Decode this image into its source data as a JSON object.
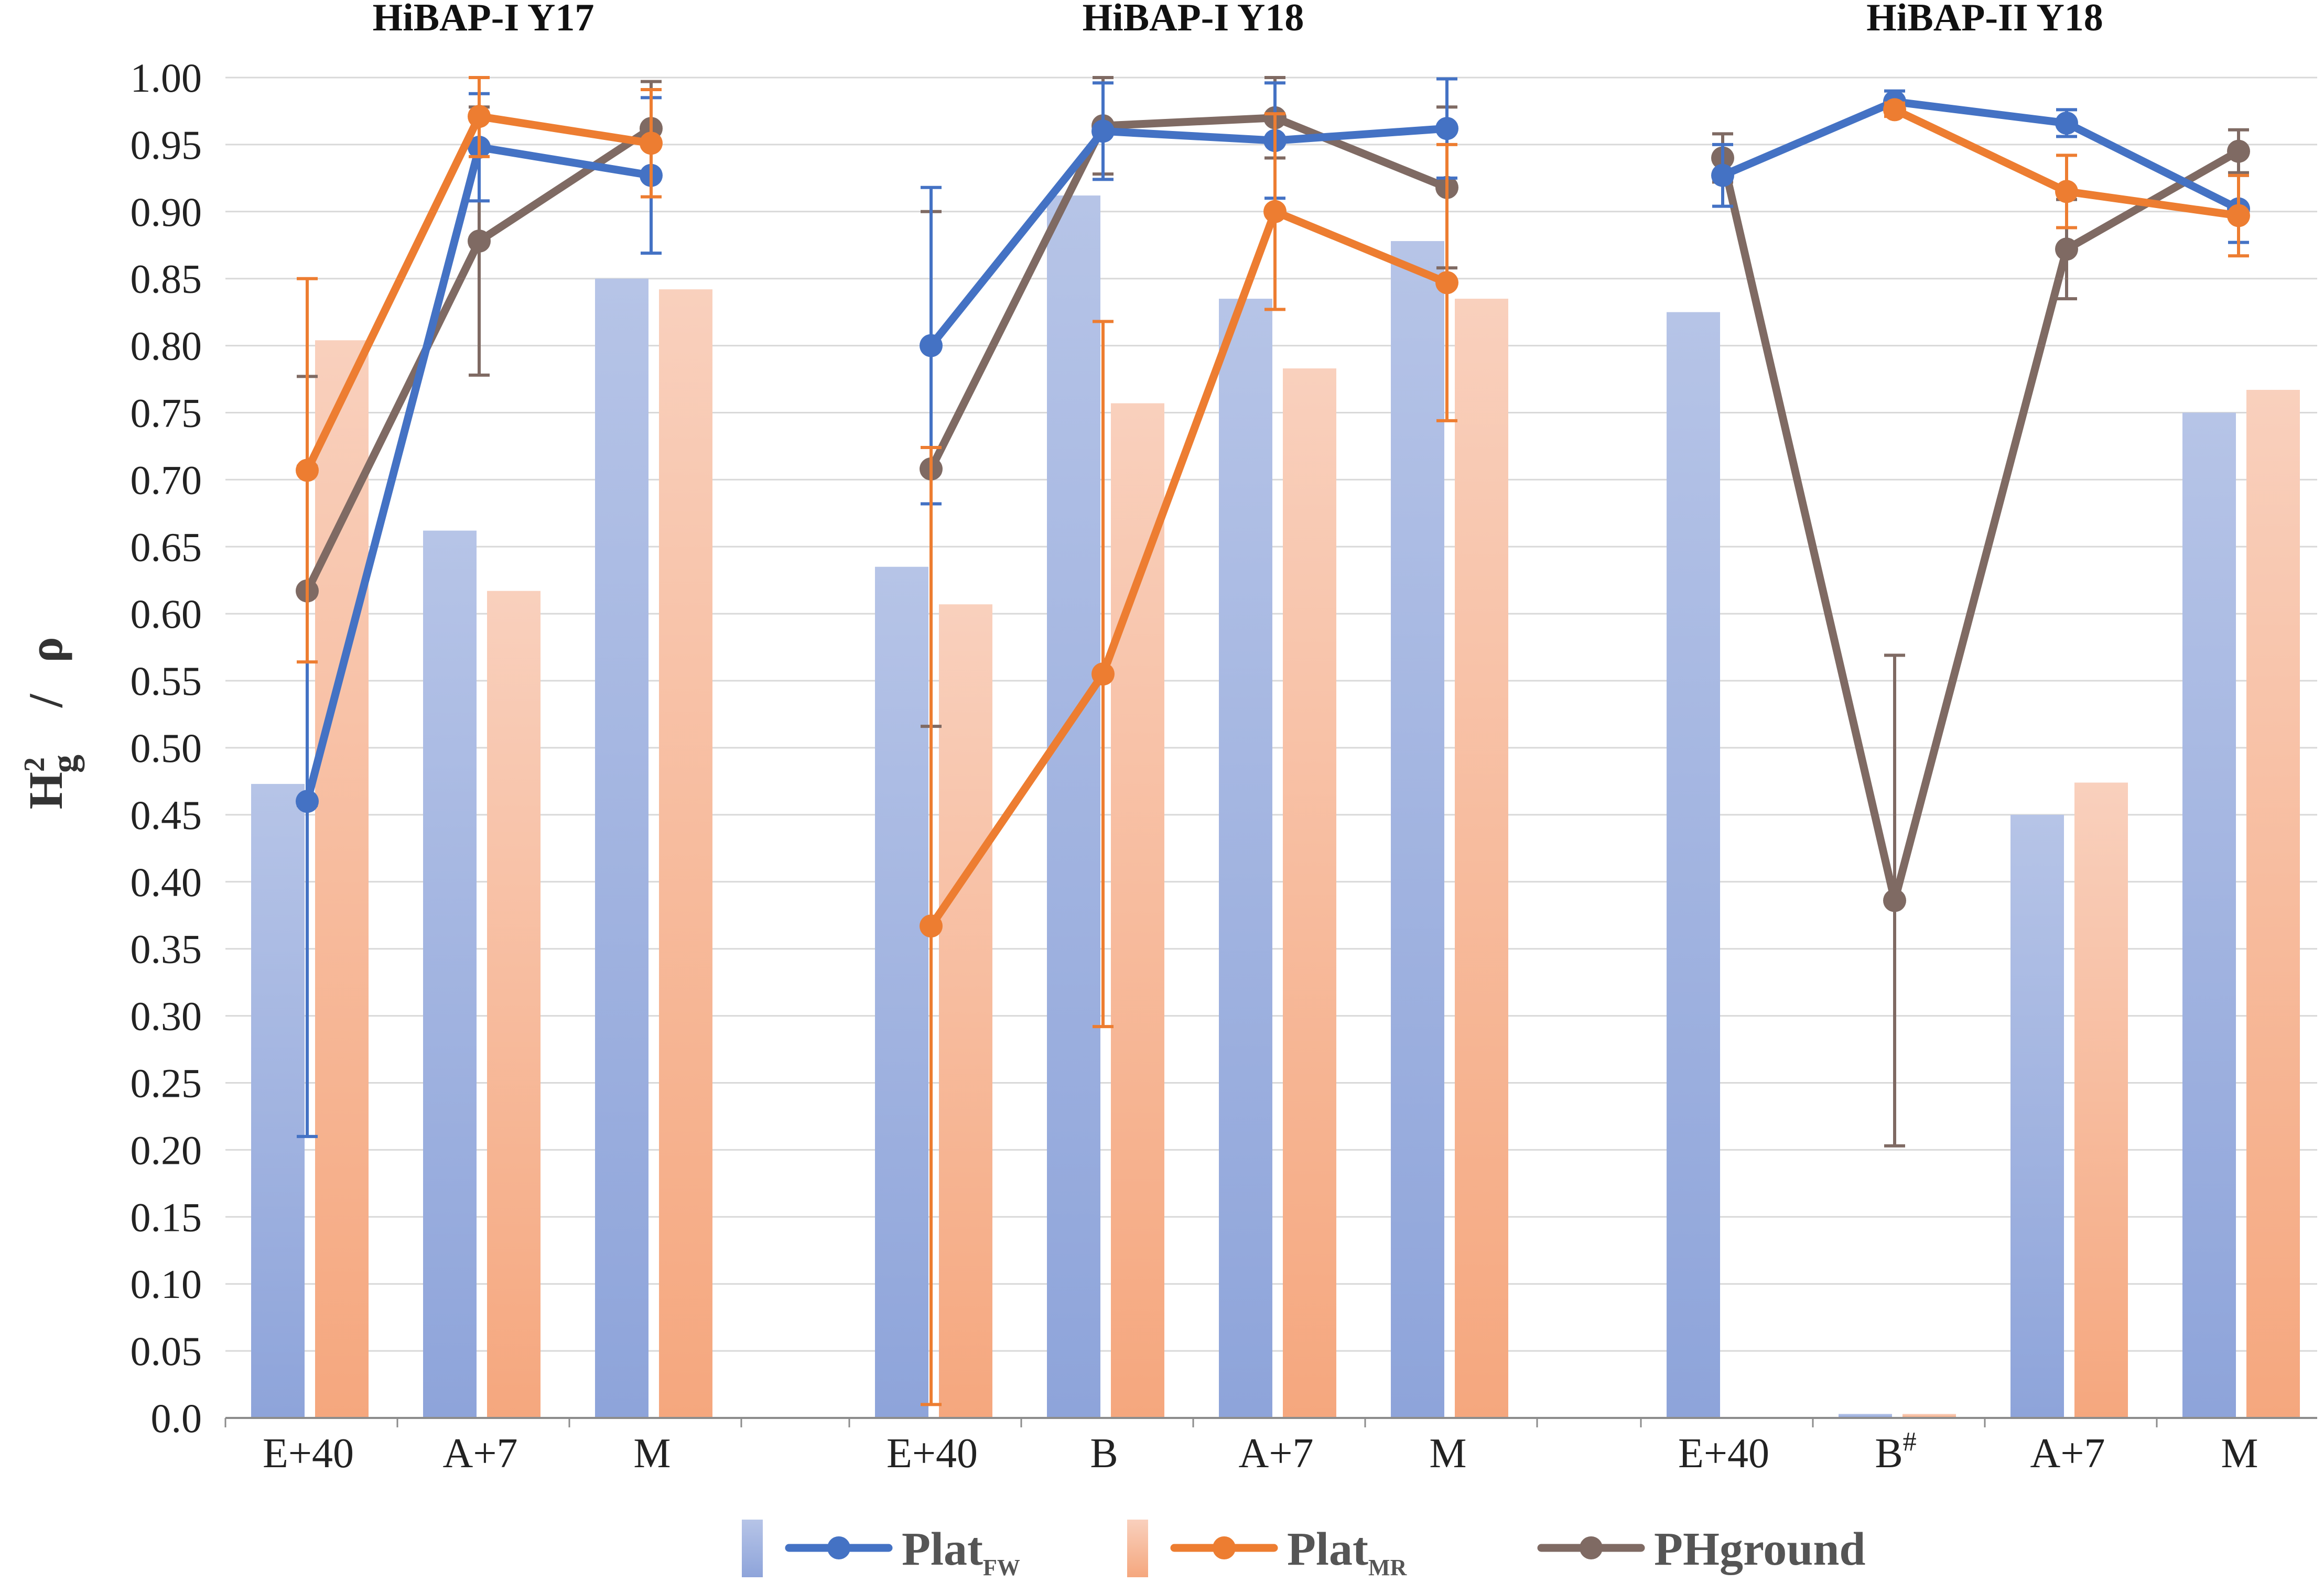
{
  "chart_data": {
    "type": "bar",
    "ylabel": {
      "main": "H",
      "sup": "2",
      "sub": "g",
      "sep": "/",
      "rho": "ρ"
    },
    "ylim": [
      0,
      1.0
    ],
    "yticks": [
      "0.0",
      "0.05",
      "0.10",
      "0.15",
      "0.20",
      "0.25",
      "0.30",
      "0.35",
      "0.40",
      "0.45",
      "0.50",
      "0.55",
      "0.60",
      "0.65",
      "0.70",
      "0.75",
      "0.80",
      "0.85",
      "0.90",
      "0.95",
      "1.00"
    ],
    "grid": true,
    "legend": {
      "position": "bottom",
      "items": [
        {
          "main": "Plat",
          "sub": "FW",
          "color": "#4472c4"
        },
        {
          "main": "Plat",
          "sub": "MR",
          "color": "#ed7d31"
        },
        {
          "main": "PHground",
          "sub": "",
          "color": "#7f6a63"
        }
      ]
    },
    "colors": {
      "bar_fw_top": "#b4c3e6",
      "bar_fw_bottom": "#8fa5da",
      "bar_mr_top": "#f8cdb8",
      "bar_mr_bottom": "#f5a880",
      "line_fw": "#4472c4",
      "line_mr": "#ed7d31",
      "line_ph": "#7f6a63",
      "grid": "#d9d9d9",
      "axis": "#8c8c8c"
    },
    "panels": [
      {
        "title": "HiBAP-I Y17",
        "categories": [
          {
            "label": "E+40",
            "sup": ""
          },
          {
            "label": "A+7",
            "sup": ""
          },
          {
            "label": "M",
            "sup": ""
          }
        ],
        "bars_fw": [
          0.473,
          0.662,
          0.85
        ],
        "bars_mr": [
          0.804,
          0.617,
          0.842
        ],
        "line_fw": {
          "values": [
            0.46,
            0.948,
            0.927
          ],
          "err": [
            0.25,
            0.04,
            0.058
          ]
        },
        "line_mr": {
          "values": [
            0.707,
            0.971,
            0.951
          ],
          "err": [
            0.143,
            0.03,
            0.04
          ]
        },
        "line_ph": {
          "values": [
            0.617,
            0.878,
            0.962
          ],
          "err": [
            0.16,
            0.1,
            0.035
          ]
        }
      },
      {
        "title": "HiBAP-I Y18",
        "categories": [
          {
            "label": "E+40",
            "sup": ""
          },
          {
            "label": "B",
            "sup": ""
          },
          {
            "label": "A+7",
            "sup": ""
          },
          {
            "label": "M",
            "sup": ""
          }
        ],
        "bars_fw": [
          0.635,
          0.912,
          0.835,
          0.878
        ],
        "bars_mr": [
          0.607,
          0.757,
          0.783,
          0.835
        ],
        "line_fw": {
          "values": [
            0.8,
            0.96,
            0.953,
            0.962
          ],
          "err": [
            0.118,
            0.036,
            0.043,
            0.037
          ]
        },
        "line_mr": {
          "values": [
            0.367,
            0.555,
            0.9,
            0.847
          ],
          "err": [
            0.357,
            0.263,
            0.073,
            0.103
          ]
        },
        "line_ph": {
          "values": [
            0.708,
            0.964,
            0.97,
            0.918
          ],
          "err": [
            0.192,
            0.036,
            0.03,
            0.06
          ]
        }
      },
      {
        "title": "HiBAP-II Y18",
        "categories": [
          {
            "label": "E+40",
            "sup": ""
          },
          {
            "label": "B",
            "sup": "#"
          },
          {
            "label": "A+7",
            "sup": ""
          },
          {
            "label": "M",
            "sup": ""
          }
        ],
        "bars_fw": [
          0.825,
          0.003,
          0.45,
          0.75
        ],
        "bars_mr": [
          0.0,
          0.003,
          0.474,
          0.767
        ],
        "line_fw": {
          "values": [
            0.927,
            0.982,
            0.966,
            0.902
          ],
          "err": [
            0.023,
            0.008,
            0.01,
            0.025
          ]
        },
        "line_mr": {
          "values": [
            null,
            0.976,
            0.915,
            0.897
          ],
          "err": [
            0,
            0.005,
            0.027,
            0.03
          ]
        },
        "line_ph": {
          "values": [
            0.94,
            null,
            0.872,
            0.945
          ],
          "err": [
            0.018,
            0,
            0.037,
            0.016
          ]
        },
        "ph_b_value": {
          "value": 0.386,
          "err": 0.183
        }
      }
    ]
  }
}
